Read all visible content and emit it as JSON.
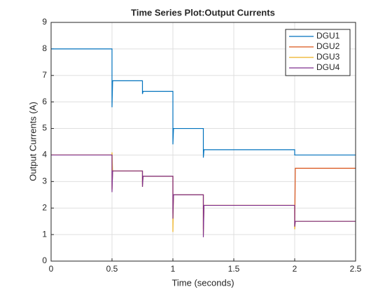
{
  "chart_data": {
    "type": "line",
    "title": "Time Series Plot:Output Currents",
    "xlabel": "Time (seconds)",
    "ylabel": "Output Currents (A)",
    "x": [
      0,
      0.5,
      0.5,
      0.505,
      0.75,
      0.75,
      0.755,
      1.0,
      1.0,
      1.005,
      1.25,
      1.25,
      1.255,
      2.0,
      2.0,
      2.005,
      2.5
    ],
    "series": [
      {
        "name": "DGU1",
        "color": "#0072bd",
        "values": [
          8,
          8,
          5.8,
          6.8,
          6.8,
          6.3,
          6.4,
          6.4,
          4.4,
          5.0,
          5.0,
          3.9,
          4.2,
          4.2,
          4.0,
          4.0,
          4.0
        ]
      },
      {
        "name": "DGU2",
        "color": "#d95319",
        "values": [
          4,
          4,
          2.7,
          3.4,
          3.4,
          2.9,
          3.2,
          3.2,
          1.8,
          2.5,
          2.5,
          1.2,
          2.1,
          2.1,
          1.3,
          3.5,
          3.5
        ]
      },
      {
        "name": "DGU3",
        "color": "#edb120",
        "values": [
          4,
          4,
          4.1,
          3.4,
          3.4,
          2.8,
          3.2,
          3.2,
          1.1,
          2.5,
          2.5,
          1.0,
          2.1,
          2.1,
          1.2,
          1.5,
          1.5
        ]
      },
      {
        "name": "DGU4",
        "color": "#7e2f8e",
        "values": [
          4,
          4,
          2.6,
          3.4,
          3.4,
          2.8,
          3.2,
          3.2,
          1.6,
          2.5,
          2.5,
          0.9,
          2.1,
          2.1,
          1.3,
          1.5,
          1.5
        ]
      }
    ],
    "xlim": [
      0,
      2.5
    ],
    "xticks": [
      0,
      0.5,
      1,
      1.5,
      2,
      2.5
    ],
    "ylim": [
      0,
      9
    ],
    "yticks": [
      0,
      1,
      2,
      3,
      4,
      5,
      6,
      7,
      8,
      9
    ],
    "grid": true,
    "legend": "upper-right"
  }
}
